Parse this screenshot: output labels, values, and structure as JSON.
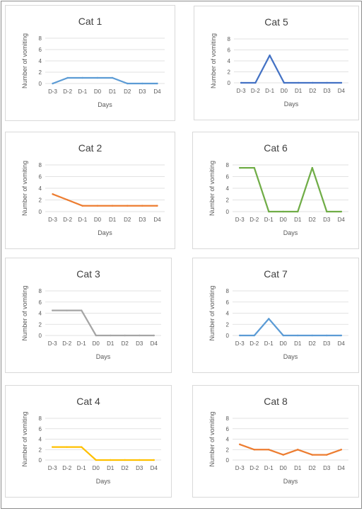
{
  "chart_data": [
    {
      "type": "line",
      "title": "Cat 1",
      "xlabel": "Days",
      "ylabel": "Number of vomiting",
      "categories": [
        "D-3",
        "D-2",
        "D-1",
        "D0",
        "D1",
        "D2",
        "D3",
        "D4"
      ],
      "values": [
        0,
        1,
        1,
        1,
        1,
        0,
        0,
        0
      ],
      "ylim": [
        0,
        8
      ],
      "yticks": [
        0,
        2,
        4,
        6,
        8
      ],
      "color": "#5b9bd5",
      "grid": true
    },
    {
      "type": "line",
      "title": "Cat 5",
      "xlabel": "Days",
      "ylabel": "Number of vomiting",
      "categories": [
        "D-3",
        "D-2",
        "D-1",
        "D0",
        "D1",
        "D2",
        "D3",
        "D4"
      ],
      "values": [
        0,
        0,
        5,
        0,
        0,
        0,
        0,
        0
      ],
      "ylim": [
        0,
        8
      ],
      "yticks": [
        0,
        2,
        4,
        6,
        8
      ],
      "color": "#4472c4",
      "grid": true
    },
    {
      "type": "line",
      "title": "Cat 2",
      "xlabel": "Days",
      "ylabel": "Number of vomiting",
      "categories": [
        "D-3",
        "D-2",
        "D-1",
        "D0",
        "D1",
        "D2",
        "D3",
        "D4"
      ],
      "values": [
        3,
        2,
        1,
        1,
        1,
        1,
        1,
        1
      ],
      "ylim": [
        0,
        8
      ],
      "yticks": [
        0,
        2,
        4,
        6,
        8
      ],
      "color": "#ed7d31",
      "grid": true
    },
    {
      "type": "line",
      "title": "Cat 6",
      "xlabel": "Days",
      "ylabel": "Number of vomiting",
      "categories": [
        "D-3",
        "D-2",
        "D-1",
        "D0",
        "D1",
        "D2",
        "D3",
        "D4"
      ],
      "values": [
        7.5,
        7.5,
        0,
        0,
        0,
        7.5,
        0,
        0
      ],
      "ylim": [
        0,
        8
      ],
      "yticks": [
        0,
        2,
        4,
        6,
        8
      ],
      "color": "#70ad47",
      "grid": true
    },
    {
      "type": "line",
      "title": "Cat 3",
      "xlabel": "Days",
      "ylabel": "Number of vomiting",
      "categories": [
        "D-3",
        "D-2",
        "D-1",
        "D0",
        "D1",
        "D2",
        "D3",
        "D4"
      ],
      "values": [
        4.5,
        4.5,
        4.5,
        0,
        0,
        0,
        0,
        0
      ],
      "ylim": [
        0,
        8
      ],
      "yticks": [
        0,
        2,
        4,
        6,
        8
      ],
      "color": "#a5a5a5",
      "grid": true
    },
    {
      "type": "line",
      "title": "Cat 7",
      "xlabel": "Days",
      "ylabel": "Number of vomiting",
      "categories": [
        "D-3",
        "D-2",
        "D-1",
        "D0",
        "D1",
        "D2",
        "D3",
        "D4"
      ],
      "values": [
        0,
        0,
        3,
        0,
        0,
        0,
        0,
        0
      ],
      "ylim": [
        0,
        8
      ],
      "yticks": [
        0,
        2,
        4,
        6,
        8
      ],
      "color": "#5b9bd5",
      "grid": true
    },
    {
      "type": "line",
      "title": "Cat 4",
      "xlabel": "Days",
      "ylabel": "Number of vomiting",
      "categories": [
        "D-3",
        "D-2",
        "D-1",
        "D0",
        "D1",
        "D2",
        "D3",
        "D4"
      ],
      "values": [
        2.5,
        2.5,
        2.5,
        0,
        0,
        0,
        0,
        0
      ],
      "ylim": [
        0,
        8
      ],
      "yticks": [
        0,
        2,
        4,
        6,
        8
      ],
      "color": "#ffc000",
      "grid": true
    },
    {
      "type": "line",
      "title": "Cat 8",
      "xlabel": "Days",
      "ylabel": "Number of vomiting",
      "categories": [
        "D-3",
        "D-2",
        "D-1",
        "D0",
        "D1",
        "D2",
        "D3",
        "D4"
      ],
      "values": [
        3,
        2,
        2,
        1,
        2,
        1,
        1,
        2
      ],
      "ylim": [
        0,
        8
      ],
      "yticks": [
        0,
        2,
        4,
        6,
        8
      ],
      "color": "#ed7d31",
      "grid": true
    }
  ]
}
